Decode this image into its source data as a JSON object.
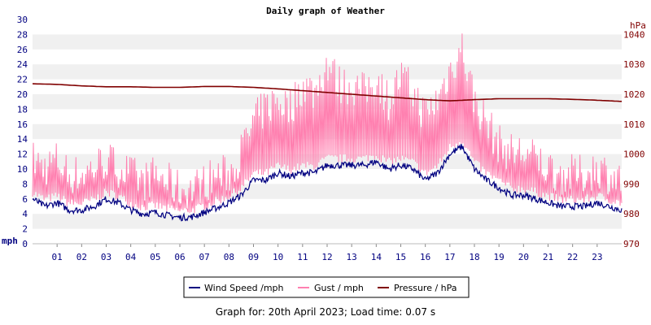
{
  "chart_data": {
    "type": "line",
    "title": "Daily graph of Weather",
    "xlabel": "",
    "ylabel_left": "mph",
    "ylabel_right": "hPa",
    "x_ticks": [
      "01",
      "02",
      "03",
      "04",
      "05",
      "06",
      "07",
      "08",
      "09",
      "10",
      "11",
      "12",
      "13",
      "14",
      "15",
      "16",
      "17",
      "18",
      "19",
      "20",
      "21",
      "22",
      "23"
    ],
    "x_range_hours": [
      0,
      24
    ],
    "ylim_left": [
      0,
      30
    ],
    "yticks_left": [
      0,
      2,
      4,
      6,
      8,
      10,
      12,
      14,
      16,
      18,
      20,
      22,
      24,
      26,
      28,
      30
    ],
    "ylim_right": [
      970,
      1045
    ],
    "yticks_right": [
      970,
      980,
      990,
      1000,
      1010,
      1020,
      1030,
      1040
    ],
    "grid": "alternating horizontal bands",
    "legend_position": "bottom",
    "series": [
      {
        "name": "Wind Speed /mph",
        "axis": "left",
        "color": "#000080",
        "x": [
          0,
          0.5,
          1,
          1.5,
          2,
          2.5,
          3,
          3.5,
          4,
          4.5,
          5,
          5.5,
          6,
          6.5,
          7,
          7.5,
          8,
          8.5,
          9,
          9.5,
          10,
          10.5,
          11,
          11.5,
          12,
          12.5,
          13,
          13.5,
          14,
          14.5,
          15,
          15.5,
          16,
          16.5,
          17,
          17.5,
          18,
          18.5,
          19,
          19.5,
          20,
          20.5,
          21,
          21.5,
          22,
          22.5,
          23,
          23.5,
          24
        ],
        "values": [
          6,
          5,
          5.5,
          4.5,
          4.5,
          5,
          6,
          5.5,
          4.5,
          4,
          4.2,
          3.8,
          3.5,
          3.6,
          4.2,
          4.8,
          5.5,
          6.5,
          8.5,
          8.5,
          9.5,
          9,
          9.5,
          9.5,
          10.5,
          10.5,
          10.5,
          10.5,
          11,
          10,
          10.5,
          10,
          8.5,
          9.5,
          12,
          13,
          10,
          8.5,
          7.5,
          6.5,
          6.5,
          6,
          5.5,
          5,
          5,
          5,
          5.5,
          5,
          4.5
        ]
      },
      {
        "name": "Gust / mph",
        "axis": "left",
        "color": "#ff80b0",
        "x": [
          0,
          0.5,
          1,
          1.5,
          2,
          2.5,
          3,
          3.5,
          4,
          4.5,
          5,
          5.5,
          6,
          6.5,
          7,
          7.5,
          8,
          8.5,
          9,
          9.5,
          10,
          10.5,
          11,
          11.5,
          12,
          12.5,
          13,
          13.5,
          14,
          14.5,
          15,
          15.5,
          16,
          16.5,
          17,
          17.5,
          18,
          18.5,
          19,
          19.5,
          20,
          20.5,
          21,
          21.5,
          22,
          22.5,
          23,
          23.5,
          24
        ],
        "values": [
          11,
          10,
          11,
          9,
          9,
          10,
          11,
          10,
          9,
          8,
          9,
          8,
          7,
          7,
          8,
          9,
          9,
          12,
          16,
          18,
          19,
          18,
          21,
          20,
          24,
          21,
          21,
          20,
          22,
          19,
          22,
          20,
          17,
          19,
          23,
          26,
          19,
          16,
          13,
          12,
          12,
          11,
          10,
          9,
          9,
          9,
          10,
          9,
          8
        ]
      },
      {
        "name": "Pressure / hPa",
        "axis": "right",
        "color": "#800000",
        "x": [
          0,
          1,
          2,
          3,
          4,
          5,
          6,
          7,
          8,
          9,
          10,
          11,
          12,
          13,
          14,
          15,
          16,
          17,
          18,
          19,
          20,
          21,
          22,
          23,
          24
        ],
        "values": [
          1023.5,
          1023.3,
          1022.8,
          1022.5,
          1022.5,
          1022.3,
          1022.3,
          1022.6,
          1022.6,
          1022.3,
          1021.8,
          1021.2,
          1020.6,
          1020,
          1019.4,
          1018.8,
          1018.2,
          1017.8,
          1018.2,
          1018.5,
          1018.5,
          1018.5,
          1018.3,
          1018,
          1017.6
        ]
      }
    ]
  },
  "footer_text": "Graph for: 20th April 2023; Load time: 0.07 s"
}
